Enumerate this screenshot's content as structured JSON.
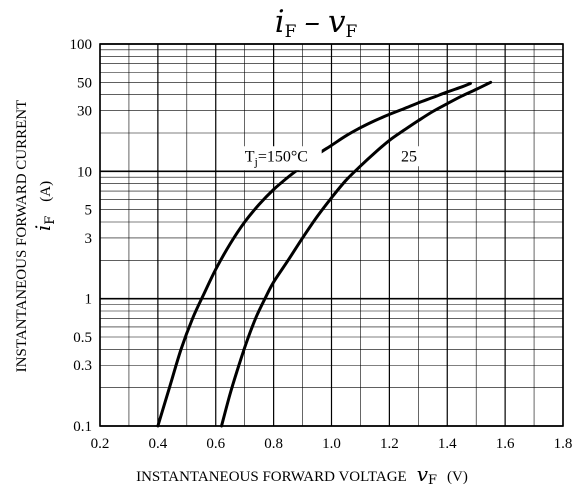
{
  "chart_data": {
    "type": "line",
    "title": {
      "main_left": "i",
      "main_left_sub": "F",
      "separator": "–",
      "main_right": "v",
      "main_right_sub": "F"
    },
    "xaxis": {
      "label": "INSTANTANEOUS FORWARD VOLTAGE",
      "symbol": "v",
      "symbol_sub": "F",
      "unit": "(V)",
      "range": [
        0.2,
        1.8
      ],
      "scale": "linear",
      "ticks": [
        0.2,
        0.4,
        0.6,
        0.8,
        1.0,
        1.2,
        1.4,
        1.6,
        1.8
      ],
      "tick_labels": [
        "0.2",
        "0.4",
        "0.6",
        "0.8",
        "1.0",
        "1.2",
        "1.4",
        "1.6",
        "1.8"
      ]
    },
    "yaxis": {
      "label": "INSTANTANEOUS FORWARD CURRENT",
      "symbol": "i",
      "symbol_sub": "F",
      "unit": "(A)",
      "range": [
        0.1,
        100
      ],
      "scale": "log",
      "ticks": [
        0.1,
        0.3,
        0.5,
        1,
        3,
        5,
        10,
        30,
        50,
        100
      ],
      "tick_labels": [
        "0.1",
        "0.3",
        "0.5",
        "1",
        "3",
        "5",
        "10",
        "30",
        "50",
        "100"
      ]
    },
    "grid": true,
    "grid_minor_x": [
      0.3,
      0.5,
      0.7,
      0.9,
      1.1,
      1.3,
      1.5,
      1.7
    ],
    "grid_minor_y": [
      0.2,
      0.3,
      0.4,
      0.5,
      0.6,
      0.7,
      0.8,
      0.9,
      2,
      3,
      4,
      5,
      6,
      7,
      8,
      9,
      20,
      30,
      40,
      50,
      60,
      70,
      80,
      90
    ],
    "series": [
      {
        "label_prefix": "T",
        "label_sub": "j",
        "label_value": "=150°C",
        "label_anchor": [
          0.7,
          12
        ],
        "color": "#000000",
        "points": [
          [
            0.4,
            0.1
          ],
          [
            0.44,
            0.2
          ],
          [
            0.48,
            0.4
          ],
          [
            0.52,
            0.7
          ],
          [
            0.56,
            1.1
          ],
          [
            0.6,
            1.7
          ],
          [
            0.65,
            2.7
          ],
          [
            0.7,
            4.0
          ],
          [
            0.75,
            5.5
          ],
          [
            0.8,
            7.2
          ],
          [
            0.85,
            9.0
          ],
          [
            0.9,
            11
          ],
          [
            0.95,
            13.5
          ],
          [
            1.0,
            16
          ],
          [
            1.05,
            19
          ],
          [
            1.1,
            22
          ],
          [
            1.15,
            25
          ],
          [
            1.2,
            28
          ],
          [
            1.25,
            31
          ],
          [
            1.3,
            34.5
          ],
          [
            1.35,
            38
          ],
          [
            1.4,
            42
          ],
          [
            1.45,
            46
          ],
          [
            1.48,
            49
          ]
        ]
      },
      {
        "label": "25",
        "label_anchor": [
          1.24,
          12
        ],
        "color": "#000000",
        "points": [
          [
            0.62,
            0.1
          ],
          [
            0.65,
            0.18
          ],
          [
            0.68,
            0.3
          ],
          [
            0.71,
            0.48
          ],
          [
            0.74,
            0.72
          ],
          [
            0.77,
            1.0
          ],
          [
            0.8,
            1.35
          ],
          [
            0.85,
            2.0
          ],
          [
            0.9,
            3.0
          ],
          [
            0.95,
            4.4
          ],
          [
            1.0,
            6.2
          ],
          [
            1.05,
            8.5
          ],
          [
            1.1,
            11
          ],
          [
            1.15,
            14
          ],
          [
            1.2,
            17.5
          ],
          [
            1.25,
            21
          ],
          [
            1.3,
            25
          ],
          [
            1.35,
            29.5
          ],
          [
            1.4,
            34
          ],
          [
            1.45,
            39
          ],
          [
            1.5,
            44
          ],
          [
            1.55,
            50
          ]
        ]
      }
    ]
  }
}
